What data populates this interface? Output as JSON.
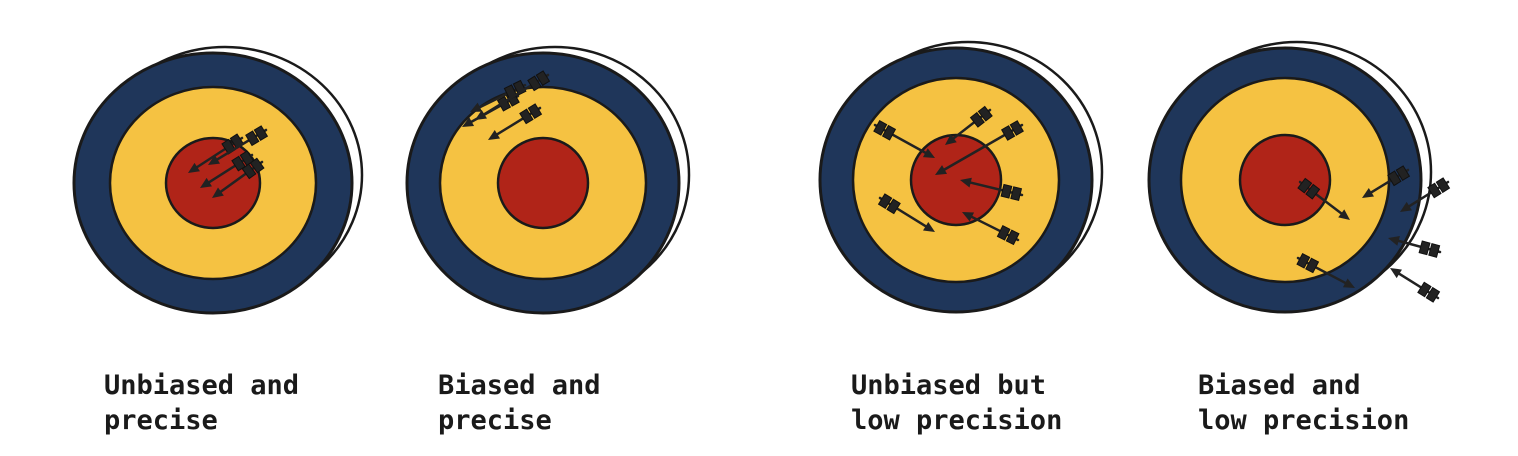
{
  "colors": {
    "outer_ring": "#1f365a",
    "middle_ring": "#f5c242",
    "bullseye": "#b02418",
    "outline": "#1a1a1a",
    "arrow": "#222222"
  },
  "targets": [
    {
      "name": "target-unbiased-precise",
      "caption_line1": "Unbiased and",
      "caption_line2": "precise",
      "bias": "low",
      "precision": "high",
      "hit_count": 4
    },
    {
      "name": "target-biased-precise",
      "caption_line1": "Biased and",
      "caption_line2": "precise",
      "bias": "high",
      "precision": "high",
      "hit_count": 4
    },
    {
      "name": "target-unbiased-low-precision",
      "caption_line1": "Unbiased but",
      "caption_line2": "low precision",
      "bias": "low",
      "precision": "low",
      "hit_count": 6
    },
    {
      "name": "target-biased-low-precision",
      "caption_line1": "Biased and",
      "caption_line2": "low precision",
      "bias": "high",
      "precision": "low",
      "hit_count": 6
    }
  ]
}
